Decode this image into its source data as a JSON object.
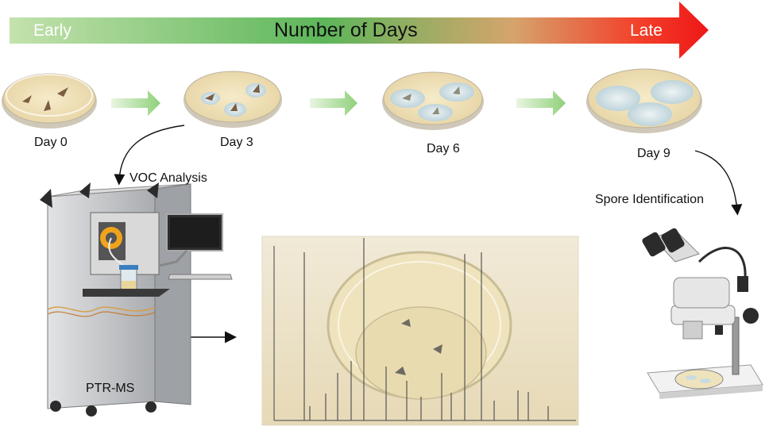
{
  "timeline": {
    "start_label": "Early",
    "title": "Number of Days",
    "end_label": "Late",
    "gradient_colors": [
      "#b7dc9f",
      "#5fb85e",
      "#f24b2c",
      "#ee1c1c"
    ]
  },
  "stages": [
    {
      "label": "Day 0"
    },
    {
      "label": "Day 3"
    },
    {
      "label": "Day 6"
    },
    {
      "label": "Day 9"
    }
  ],
  "steps": {
    "voc_analysis": "VOC Analysis",
    "spore_identification": "Spore Identification"
  },
  "instrument": {
    "label": "PTR-MS"
  },
  "colors": {
    "agar": "#efe0b8",
    "dish_rim": "#d9d4c8",
    "flow_arrow": "#9fd68b",
    "mold": "#c9dbe0",
    "instrument_body": "#c7c9cc",
    "instrument_dark": "#3a3a3a"
  }
}
